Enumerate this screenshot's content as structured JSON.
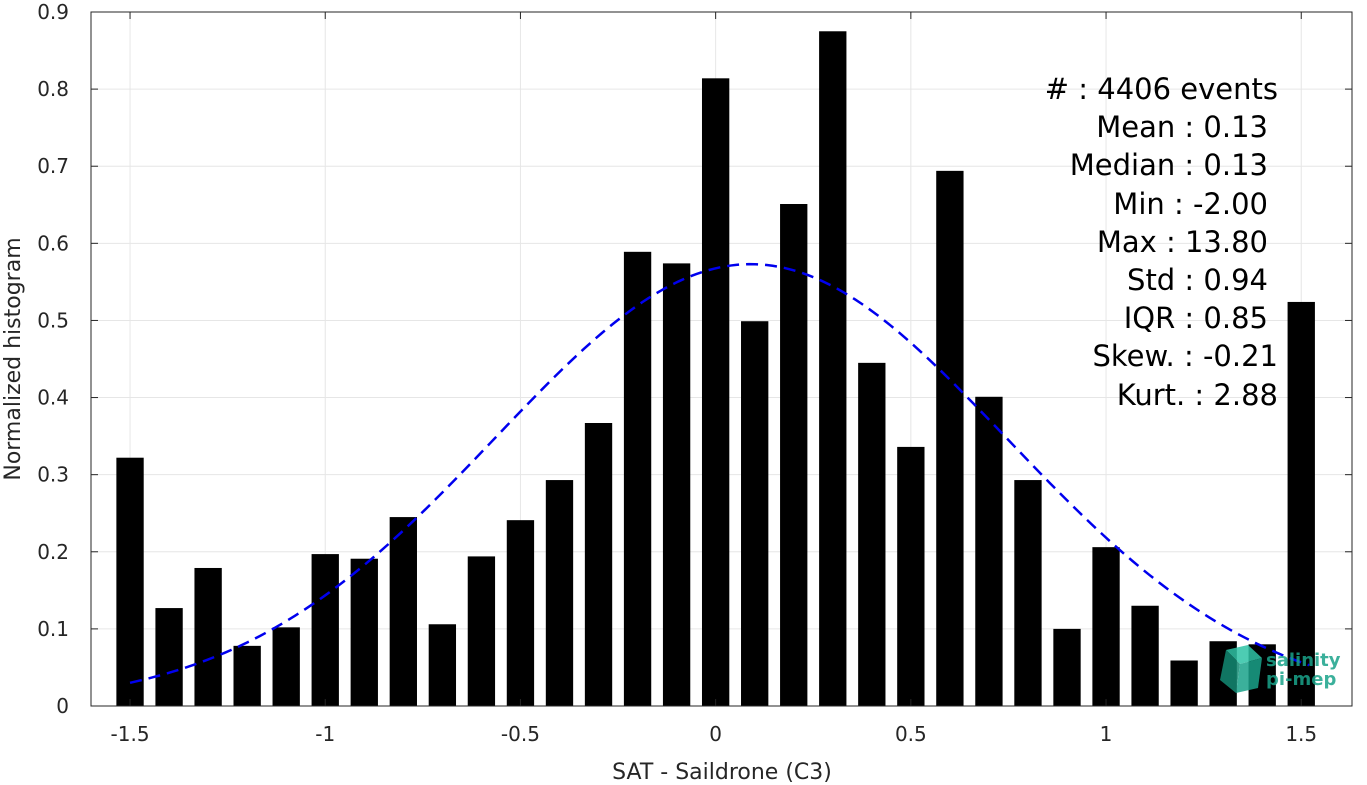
{
  "chart_data": {
    "type": "bar",
    "xlabel": "SAT - Saildrone (C3)",
    "ylabel": "Normalized histogram",
    "xlim": [
      -1.6,
      1.63
    ],
    "ylim": [
      0,
      0.9
    ],
    "xticks": [
      -1.5,
      -1,
      -0.5,
      0,
      0.5,
      1,
      1.5
    ],
    "xtick_labels": [
      "-1.5",
      "-1",
      "-0.5",
      "0",
      "0.5",
      "1",
      "1.5"
    ],
    "yticks": [
      0,
      0.1,
      0.2,
      0.3,
      0.4,
      0.5,
      0.6,
      0.7,
      0.8,
      0.9
    ],
    "ytick_labels": [
      "0",
      "0.1",
      "0.2",
      "0.3",
      "0.4",
      "0.5",
      "0.6",
      "0.7",
      "0.8",
      "0.9"
    ],
    "grid": true,
    "bar_width": 0.07,
    "bar_color": "#000000",
    "x": [
      -1.5,
      -1.4,
      -1.3,
      -1.2,
      -1.1,
      -1.0,
      -0.9,
      -0.8,
      -0.7,
      -0.6,
      -0.5,
      -0.4,
      -0.3,
      -0.2,
      -0.1,
      0.0,
      0.1,
      0.2,
      0.3,
      0.4,
      0.5,
      0.6,
      0.7,
      0.8,
      0.9,
      1.0,
      1.1,
      1.2,
      1.3,
      1.4,
      1.5
    ],
    "values": [
      0.322,
      0.127,
      0.179,
      0.078,
      0.102,
      0.197,
      0.191,
      0.245,
      0.106,
      0.194,
      0.241,
      0.293,
      0.367,
      0.589,
      0.574,
      0.814,
      0.499,
      0.651,
      0.875,
      0.445,
      0.336,
      0.694,
      0.401,
      0.293,
      0.1,
      0.206,
      0.13,
      0.059,
      0.084,
      0.08,
      0.524
    ],
    "fit_curve": {
      "style": "dashed",
      "color": "#0000ee",
      "mean": 0.09,
      "sigma": 0.655,
      "peak": 0.573,
      "x_range": [
        -1.5,
        1.52
      ]
    },
    "annotations": [
      "#  : 4406 events",
      "Mean : 0.13",
      "Median : 0.13",
      "Min : -2.00",
      "Max : 13.80",
      "Std : 0.94",
      "IQR : 0.85",
      "Skew. : -0.21",
      "Kurt. : 2.88"
    ]
  },
  "logo": {
    "line1": "salinity",
    "line2": "pi-mep",
    "color": "#1aa38a"
  }
}
